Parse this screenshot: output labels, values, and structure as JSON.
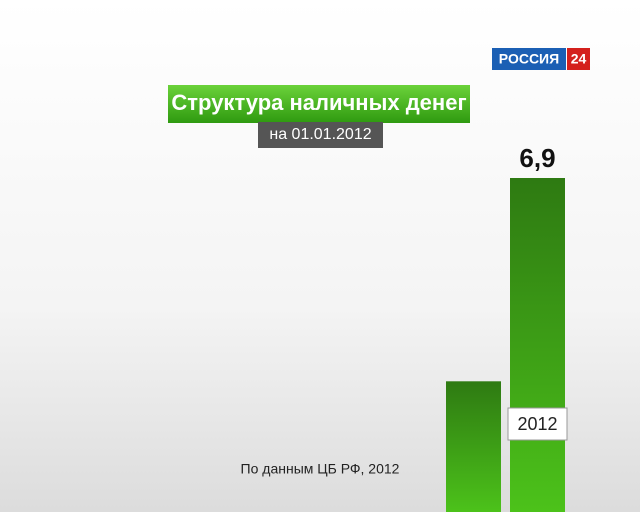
{
  "logo": {
    "name": "РОССИЯ",
    "number": "24"
  },
  "chart_data": {
    "type": "bar",
    "title": "Структура наличных денег",
    "subtitle": "на 01.01.2012",
    "categories": [
      null,
      "2012"
    ],
    "values": [
      2.7,
      6.9
    ],
    "value_labels": [
      null,
      "6,9"
    ],
    "color": "#3fae12",
    "source": "По данным ЦБ РФ, 2012"
  }
}
